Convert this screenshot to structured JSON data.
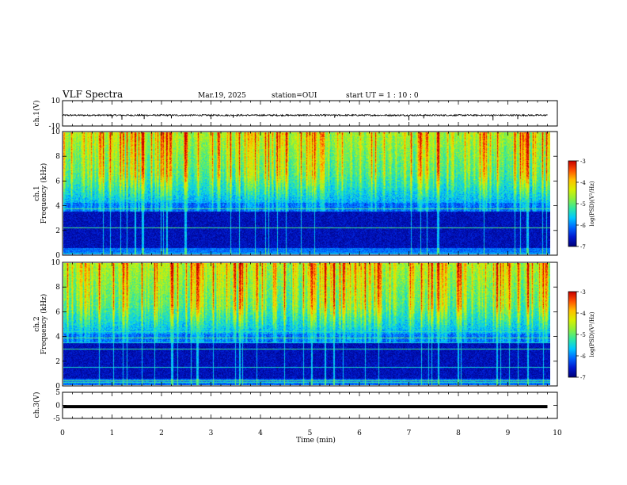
{
  "header": {
    "title": "VLF Spectra",
    "date": "Mar.19, 2025",
    "station": "station=OUI",
    "start_ut": "start  UT =   1 : 10 : 0"
  },
  "colors": {
    "spectrum_scale": [
      "#00007a",
      "#0018d0",
      "#0066ff",
      "#00c8ff",
      "#30e8a0",
      "#8cf03c",
      "#d8f000",
      "#ffc000",
      "#ff5000",
      "#c80000"
    ],
    "trace": "#000000",
    "frame": "#000000"
  },
  "chart_data": [
    {
      "type": "line",
      "name": "ch1-waveform",
      "ylabel": "ch.1(V)",
      "ylim": [
        -10,
        10
      ],
      "yticks": [
        "10",
        "-10"
      ],
      "xlim": [
        0,
        10
      ],
      "baseline_v": -1.5,
      "noise_v": 0.6,
      "spikes": [
        {
          "t": 1.0,
          "v": -4.0
        },
        {
          "t": 1.2,
          "v": -5.0
        },
        {
          "t": 1.65,
          "v": -4.5
        },
        {
          "t": 2.2,
          "v": -4.0
        },
        {
          "t": 3.0,
          "v": -4.5
        },
        {
          "t": 3.45,
          "v": -3.5
        },
        {
          "t": 5.5,
          "v": -3.5
        },
        {
          "t": 7.0,
          "v": -5.5
        },
        {
          "t": 7.3,
          "v": -4.0
        },
        {
          "t": 8.7,
          "v": -5.5
        },
        {
          "t": 9.2,
          "v": -4.5
        }
      ]
    },
    {
      "type": "heatmap",
      "name": "ch1-spectrogram",
      "ylabel": "ch.1",
      "ylabel2": "Frequency  (kHz)",
      "ylim": [
        0,
        10
      ],
      "yticks": [
        "0",
        "2",
        "4",
        "6",
        "8",
        "10"
      ],
      "xlim": [
        0,
        10
      ],
      "data_tmax_min": 9.8,
      "colorbar": {
        "label": "log(PSD)(V²/Hz)",
        "range": [
          -7,
          -3
        ],
        "ticks": [
          "-3",
          "-4",
          "-5",
          "-6",
          "-7"
        ]
      }
    },
    {
      "type": "heatmap",
      "name": "ch2-spectrogram",
      "ylabel": "ch.2",
      "ylabel2": "Frequency  (kHz)",
      "ylim": [
        0,
        10
      ],
      "yticks": [
        "0",
        "2",
        "4",
        "6",
        "8",
        "10"
      ],
      "xlim": [
        0,
        10
      ],
      "data_tmax_min": 9.8,
      "colorbar": {
        "label": "log(PSD)(V²/Hz)",
        "range": [
          -7,
          -3
        ],
        "ticks": [
          "-3",
          "-4",
          "-5",
          "-6",
          "-7"
        ]
      }
    },
    {
      "type": "line",
      "name": "ch3-waveform",
      "ylabel": "ch.3(V)",
      "ylim": [
        -5,
        5
      ],
      "yticks": [
        "5",
        "0",
        "-5"
      ],
      "xlim": [
        0,
        10
      ],
      "value_v": -0.5,
      "xlabel": "Time  (min)",
      "xticks": [
        "0",
        "1",
        "2",
        "3",
        "4",
        "5",
        "6",
        "7",
        "8",
        "9",
        "10"
      ]
    }
  ]
}
